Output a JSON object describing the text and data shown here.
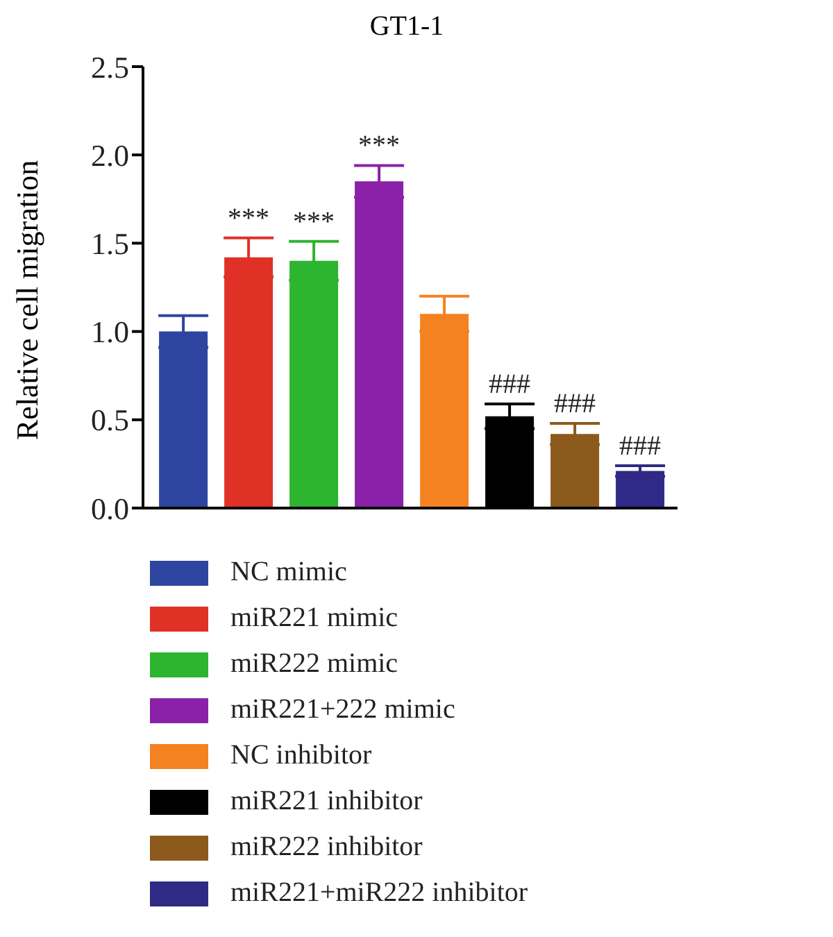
{
  "chart_data": {
    "type": "bar",
    "title": "GT1-1",
    "ylabel": "Relative cell migration",
    "categories": [
      null
    ],
    "series": [
      {
        "name": "NC mimic",
        "color": "#2e45a0",
        "values": [
          1.0
        ],
        "errors": [
          0.09
        ]
      },
      {
        "name": "miR221 mimic",
        "color": "#e03127",
        "values": [
          1.42
        ],
        "errors": [
          0.11
        ],
        "value_labels": [
          "***"
        ]
      },
      {
        "name": "miR222 mimic",
        "color": "#2db52f",
        "values": [
          1.4
        ],
        "errors": [
          0.11
        ],
        "value_labels": [
          "***"
        ]
      },
      {
        "name": "miR221+222 mimic",
        "color": "#8a21a8",
        "values": [
          1.85
        ],
        "errors": [
          0.09
        ],
        "value_labels": [
          "***"
        ]
      },
      {
        "name": "NC inhibitor",
        "color": "#f58220",
        "values": [
          1.1
        ],
        "errors": [
          0.1
        ]
      },
      {
        "name": "miR221 inhibitor",
        "color": "#000000",
        "values": [
          0.52
        ],
        "errors": [
          0.07
        ],
        "value_labels": [
          "###"
        ]
      },
      {
        "name": "miR222 inhibitor",
        "color": "#8b5a1c",
        "values": [
          0.42
        ],
        "errors": [
          0.06
        ],
        "value_labels": [
          "###"
        ]
      },
      {
        "name": "miR221+miR222 inhibitor",
        "color": "#2e2a85",
        "values": [
          0.21
        ],
        "errors": [
          0.03
        ],
        "value_labels": [
          "###"
        ]
      }
    ],
    "ylim": [
      0,
      2.5
    ],
    "yticks": [
      {
        "value": 0,
        "label": "0.0"
      },
      0.5,
      {
        "value": 1,
        "label": "1.0"
      },
      1.5,
      {
        "value": 2,
        "label": "2.0"
      },
      2.5
    ],
    "grid": false,
    "legend": "bottom"
  }
}
